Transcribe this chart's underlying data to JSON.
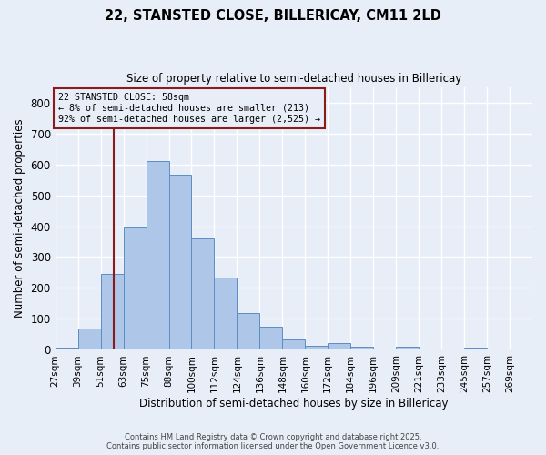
{
  "title1": "22, STANSTED CLOSE, BILLERICAY, CM11 2LD",
  "title2": "Size of property relative to semi-detached houses in Billericay",
  "xlabel": "Distribution of semi-detached houses by size in Billericay",
  "ylabel": "Number of semi-detached properties",
  "bin_labels": [
    "27sqm",
    "39sqm",
    "51sqm",
    "63sqm",
    "75sqm",
    "88sqm",
    "100sqm",
    "112sqm",
    "124sqm",
    "136sqm",
    "148sqm",
    "160sqm",
    "172sqm",
    "184sqm",
    "196sqm",
    "209sqm",
    "221sqm",
    "233sqm",
    "245sqm",
    "257sqm",
    "269sqm"
  ],
  "bar_values": [
    8,
    70,
    245,
    395,
    610,
    565,
    360,
    235,
    120,
    75,
    35,
    12,
    22,
    10,
    0,
    10,
    0,
    0,
    8,
    0,
    0
  ],
  "bar_color": "#aec6e8",
  "bar_edge_color": "#5b8ec4",
  "vline_bin": 2,
  "vline_color": "#8b1a1a",
  "annotation_title": "22 STANSTED CLOSE: 58sqm",
  "annotation_line1": "← 8% of semi-detached houses are smaller (213)",
  "annotation_line2": "92% of semi-detached houses are larger (2,525) →",
  "annotation_box_color": "#8b1a1a",
  "ylim": [
    0,
    850
  ],
  "yticks": [
    0,
    100,
    200,
    300,
    400,
    500,
    600,
    700,
    800
  ],
  "footer1": "Contains HM Land Registry data © Crown copyright and database right 2025.",
  "footer2": "Contains public sector information licensed under the Open Government Licence v3.0.",
  "bg_color": "#e8eef8",
  "grid_color": "#ffffff"
}
